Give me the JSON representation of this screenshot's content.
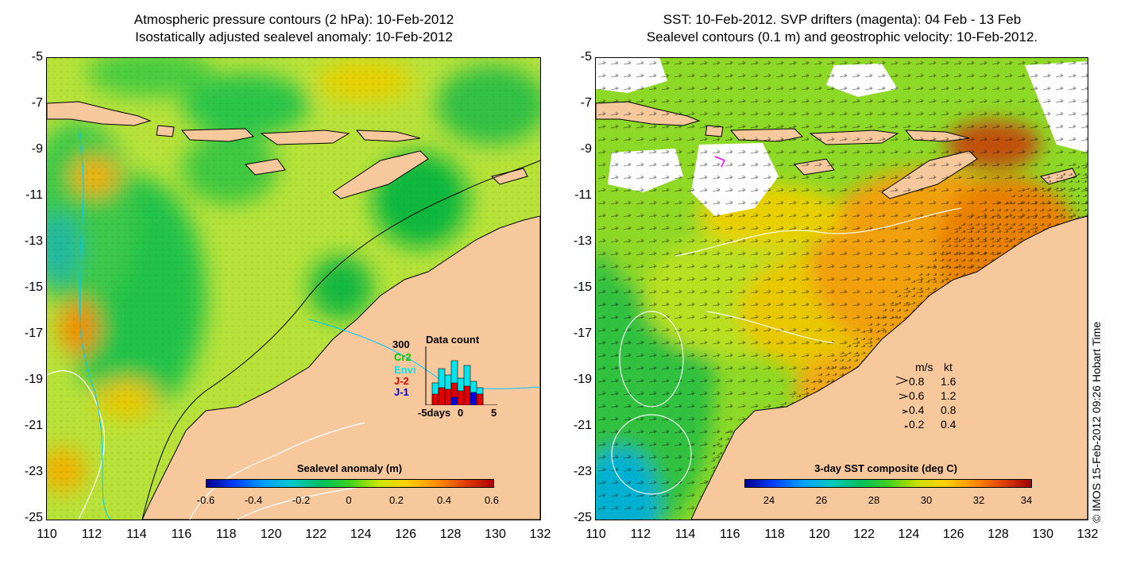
{
  "left_panel": {
    "title_line1": "Atmospheric pressure contours (2 hPa): 10-Feb-2012",
    "title_line2": "Isostatically adjusted sealevel anomaly: 10-Feb-2012",
    "colorbar": {
      "title": "Sealevel anomaly (m)",
      "ticks": [
        "-0.6",
        "-0.4",
        "-0.2",
        "0",
        "0.2",
        "0.4",
        "0.6"
      ]
    },
    "data_count": {
      "title": "Data count",
      "y_max": "300",
      "series": [
        "Cr2",
        "Envi",
        "J-2",
        "J-1"
      ],
      "series_colors": [
        "#00c800",
        "#00e5ee",
        "#e00000",
        "#0000e0"
      ],
      "x_ticks": [
        "-5days",
        "0",
        "5"
      ]
    }
  },
  "right_panel": {
    "title_line1": "SST: 10-Feb-2012. SVP drifters (magenta): 04 Feb - 13 Feb",
    "title_line2": "Sealevel contours (0.1 m) and geostrophic velocity: 10-Feb-2012.",
    "colorbar": {
      "title": "3-day SST composite (deg C)",
      "ticks": [
        "24",
        "26",
        "28",
        "30",
        "32",
        "34"
      ]
    },
    "velocity_legend": {
      "header_ms": "m/s",
      "header_kt": "kt",
      "rows": [
        {
          "ms": "0.8",
          "kt": "1.6"
        },
        {
          "ms": "0.6",
          "kt": "1.2"
        },
        {
          "ms": "0.4",
          "kt": "0.8"
        },
        {
          "ms": "0.2",
          "kt": "0.4"
        }
      ]
    }
  },
  "axes": {
    "y_ticks": [
      "-5",
      "-7",
      "-9",
      "-11",
      "-13",
      "-15",
      "-17",
      "-19",
      "-21",
      "-23",
      "-25"
    ],
    "x_ticks": [
      "110",
      "112",
      "114",
      "116",
      "118",
      "120",
      "122",
      "124",
      "126",
      "128",
      "130",
      "132"
    ]
  },
  "copyright": "© IMOS 15-Feb-2012 09:26 Hobart Time",
  "colors": {
    "land": "#f7c89c",
    "sla_scale": [
      "#00008b",
      "#0060ff",
      "#00c8c8",
      "#00c040",
      "#c8e800",
      "#ffa000",
      "#b00000"
    ],
    "sst_scale": [
      "#00008b",
      "#0070ff",
      "#00c8c0",
      "#00c040",
      "#d0e000",
      "#ff9000",
      "#a00000"
    ]
  }
}
